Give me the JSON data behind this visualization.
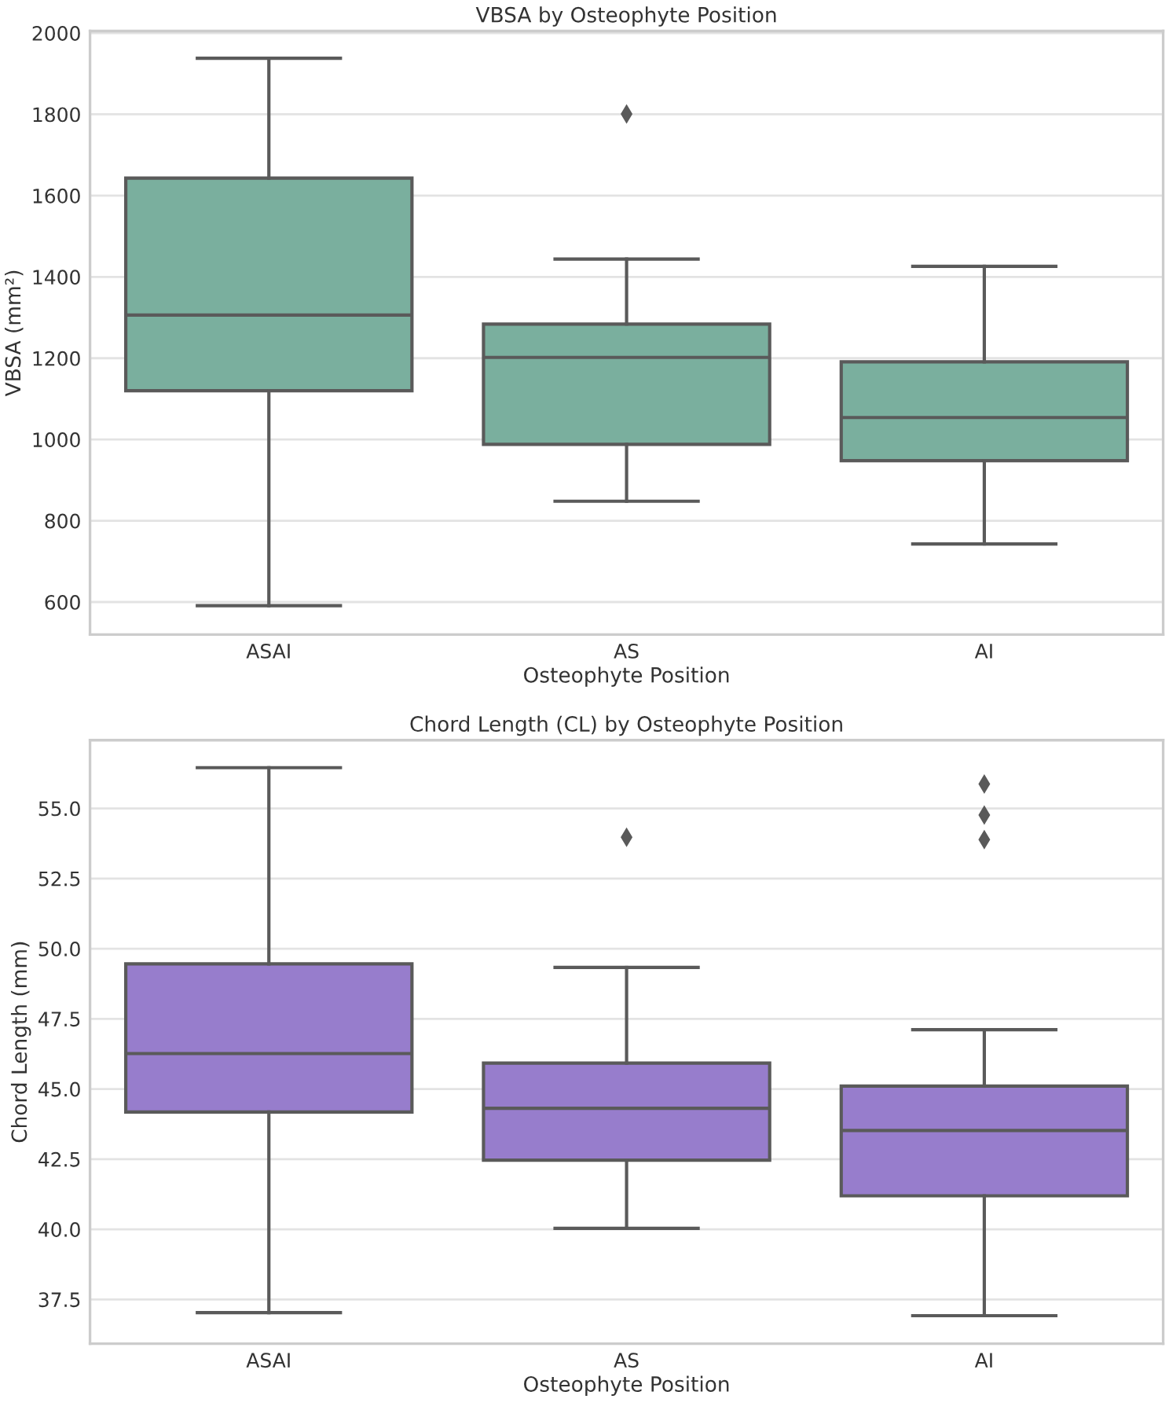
{
  "chart_data": [
    {
      "type": "box",
      "title": "VBSA by Osteophyte Position",
      "xlabel": "Osteophyte Position",
      "ylabel": "VBSA (mm²)",
      "categories": [
        "ASAI",
        "AS",
        "AI"
      ],
      "color": "#7aaf9e",
      "grid": "y",
      "marker": "diamond",
      "ylim": [
        520,
        2005
      ],
      "yticks": [
        600,
        800,
        1000,
        1200,
        1400,
        1600,
        1800,
        2000
      ],
      "boxes": [
        {
          "low": 591,
          "q1": 1120,
          "median": 1306,
          "q3": 1643,
          "high": 1938
        },
        {
          "low": 848,
          "q1": 988,
          "median": 1202,
          "q3": 1284,
          "high": 1444,
          "outliers": [
            1801
          ]
        },
        {
          "low": 743,
          "q1": 948,
          "median": 1054,
          "q3": 1191,
          "high": 1426
        }
      ]
    },
    {
      "type": "box",
      "title": "Chord Length (CL) by Osteophyte Position",
      "xlabel": "Osteophyte Position",
      "ylabel": "Chord Length (mm)",
      "categories": [
        "ASAI",
        "AS",
        "AI"
      ],
      "color": "#977dcc",
      "grid": "y",
      "marker": "diamond",
      "ylim": [
        35.92,
        57.43
      ],
      "yticks": [
        {
          "value": 37.5,
          "label": "37.5"
        },
        {
          "value": 40,
          "label": "40.0"
        },
        {
          "value": 42.5,
          "label": "42.5"
        },
        {
          "value": 45,
          "label": "45.0"
        },
        {
          "value": 47.5,
          "label": "47.5"
        },
        {
          "value": 50,
          "label": "50.0"
        },
        {
          "value": 52.5,
          "label": "52.5"
        },
        {
          "value": 55,
          "label": "55.0"
        }
      ],
      "boxes": [
        {
          "low": 37.03,
          "q1": 44.18,
          "median": 46.26,
          "q3": 49.46,
          "high": 56.45
        },
        {
          "low": 40.03,
          "q1": 42.46,
          "median": 44.31,
          "q3": 45.92,
          "high": 49.33,
          "outliers": [
            53.97
          ]
        },
        {
          "low": 36.92,
          "q1": 41.19,
          "median": 43.52,
          "q3": 45.1,
          "high": 47.11,
          "outliers": [
            53.89,
            54.76,
            55.87
          ]
        }
      ]
    }
  ]
}
